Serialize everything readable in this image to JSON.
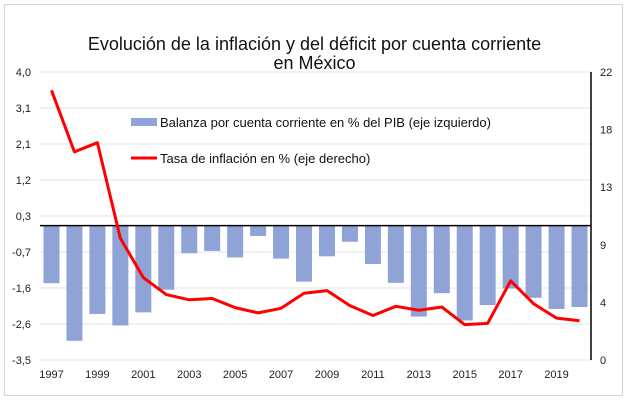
{
  "chart_data": {
    "type": "bar+line",
    "title_line1": "Evolución de la inflación y del déficit por cuenta corriente",
    "title_line2": "en México",
    "categories": [
      "1997",
      "1998",
      "1999",
      "2000",
      "2001",
      "2002",
      "2003",
      "2004",
      "2005",
      "2006",
      "2007",
      "2008",
      "2009",
      "2010",
      "2011",
      "2012",
      "2013",
      "2014",
      "2015",
      "2016",
      "2017",
      "2018",
      "2019",
      "2020"
    ],
    "x_tick_labels": [
      "1997",
      "1999",
      "2001",
      "2003",
      "2005",
      "2007",
      "2009",
      "2011",
      "2013",
      "2015",
      "2017",
      "2019"
    ],
    "series": [
      {
        "name": "Balanza por cuenta corriente en % del PIB (eje izquierdo)",
        "type": "bar",
        "axis": "left",
        "color": "#8FA3D6",
        "values": [
          -1.5,
          -3.0,
          -2.3,
          -2.6,
          -2.26,
          -1.67,
          -0.72,
          -0.66,
          -0.83,
          -0.27,
          -0.86,
          -1.46,
          -0.8,
          -0.42,
          -1.0,
          -1.49,
          -2.37,
          -1.76,
          -2.47,
          -2.07,
          -1.64,
          -1.88,
          -2.17,
          -2.12
        ]
      },
      {
        "name": "Tasa de inflación en % (eje derecho)",
        "type": "line",
        "axis": "right",
        "color": "#FF0000",
        "values": [
          20.6,
          15.9,
          16.6,
          9.3,
          6.3,
          5.0,
          4.6,
          4.7,
          4.0,
          3.6,
          3.95,
          5.1,
          5.3,
          4.15,
          3.4,
          4.1,
          3.8,
          4.05,
          2.7,
          2.8,
          6.05,
          4.3,
          3.2,
          3.0
        ]
      }
    ],
    "left_axis": {
      "range": [
        -3.5,
        4.0
      ],
      "tick_labels": [
        "4,0",
        "3,1",
        "2,1",
        "1,2",
        "0,3",
        "-0,7",
        "-1,6",
        "-2,6",
        "-3,5"
      ]
    },
    "right_axis": {
      "range": [
        0,
        22
      ],
      "tick_labels": [
        "22",
        "18",
        "13",
        "9",
        "4",
        "0"
      ]
    },
    "grid": true,
    "legend_placement": "top-left inside"
  }
}
